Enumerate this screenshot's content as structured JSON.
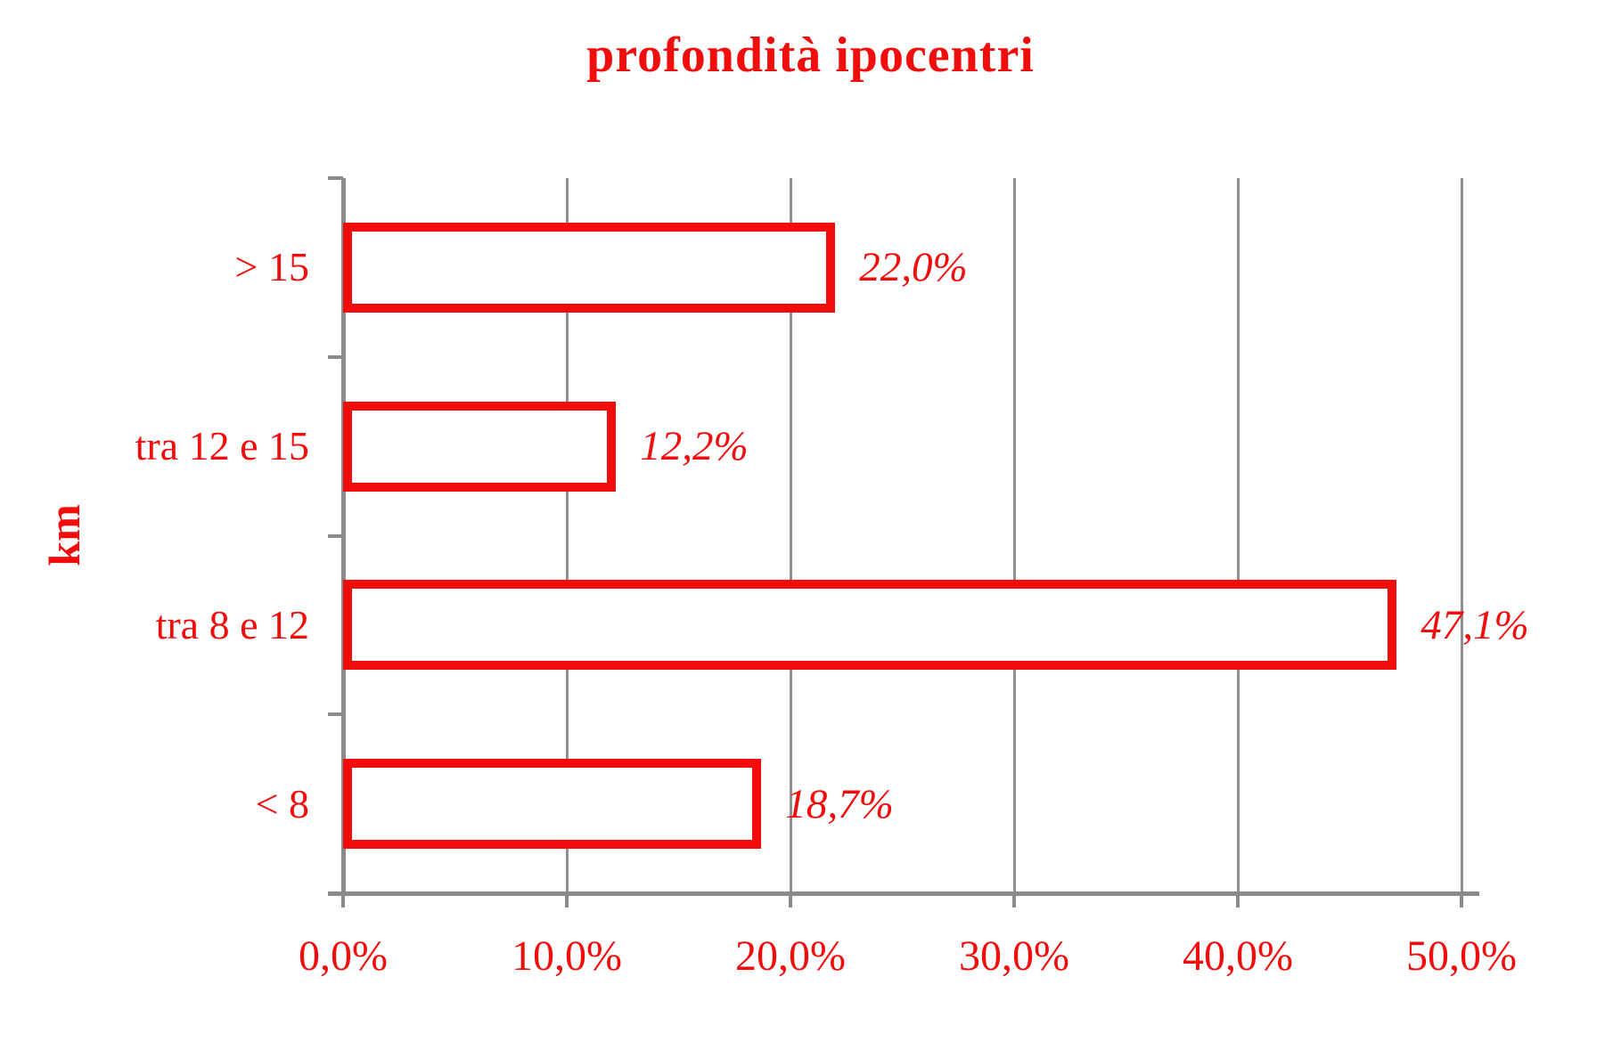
{
  "page": {
    "background": "#ffffff"
  },
  "colors": {
    "red": "#f20d0d",
    "grid": "#8f8f8f",
    "axis": "#8a8a8a",
    "bar_fill": "#ffffff"
  },
  "chart_data": {
    "type": "bar",
    "orientation": "horizontal",
    "title": "profondità ipocentri",
    "xlabel": "",
    "ylabel": "km",
    "categories": [
      "> 15",
      "tra 12 e 15",
      "tra 8 e 12",
      "< 8"
    ],
    "values": [
      22.0,
      12.2,
      47.1,
      18.7
    ],
    "value_labels": [
      "22,0%",
      "12,2%",
      "47,1%",
      "18,7%"
    ],
    "xlim": [
      0,
      50
    ],
    "x_ticks": [
      0,
      10,
      20,
      30,
      40,
      50
    ],
    "x_tick_labels": [
      "0,0%",
      "10,0%",
      "20,0%",
      "30,0%",
      "40,0%",
      "50,0%"
    ],
    "grid": "vertical-gridlines-on",
    "legend": "none",
    "bar_style": "white fill with thick red outline, value labels right of bars"
  }
}
